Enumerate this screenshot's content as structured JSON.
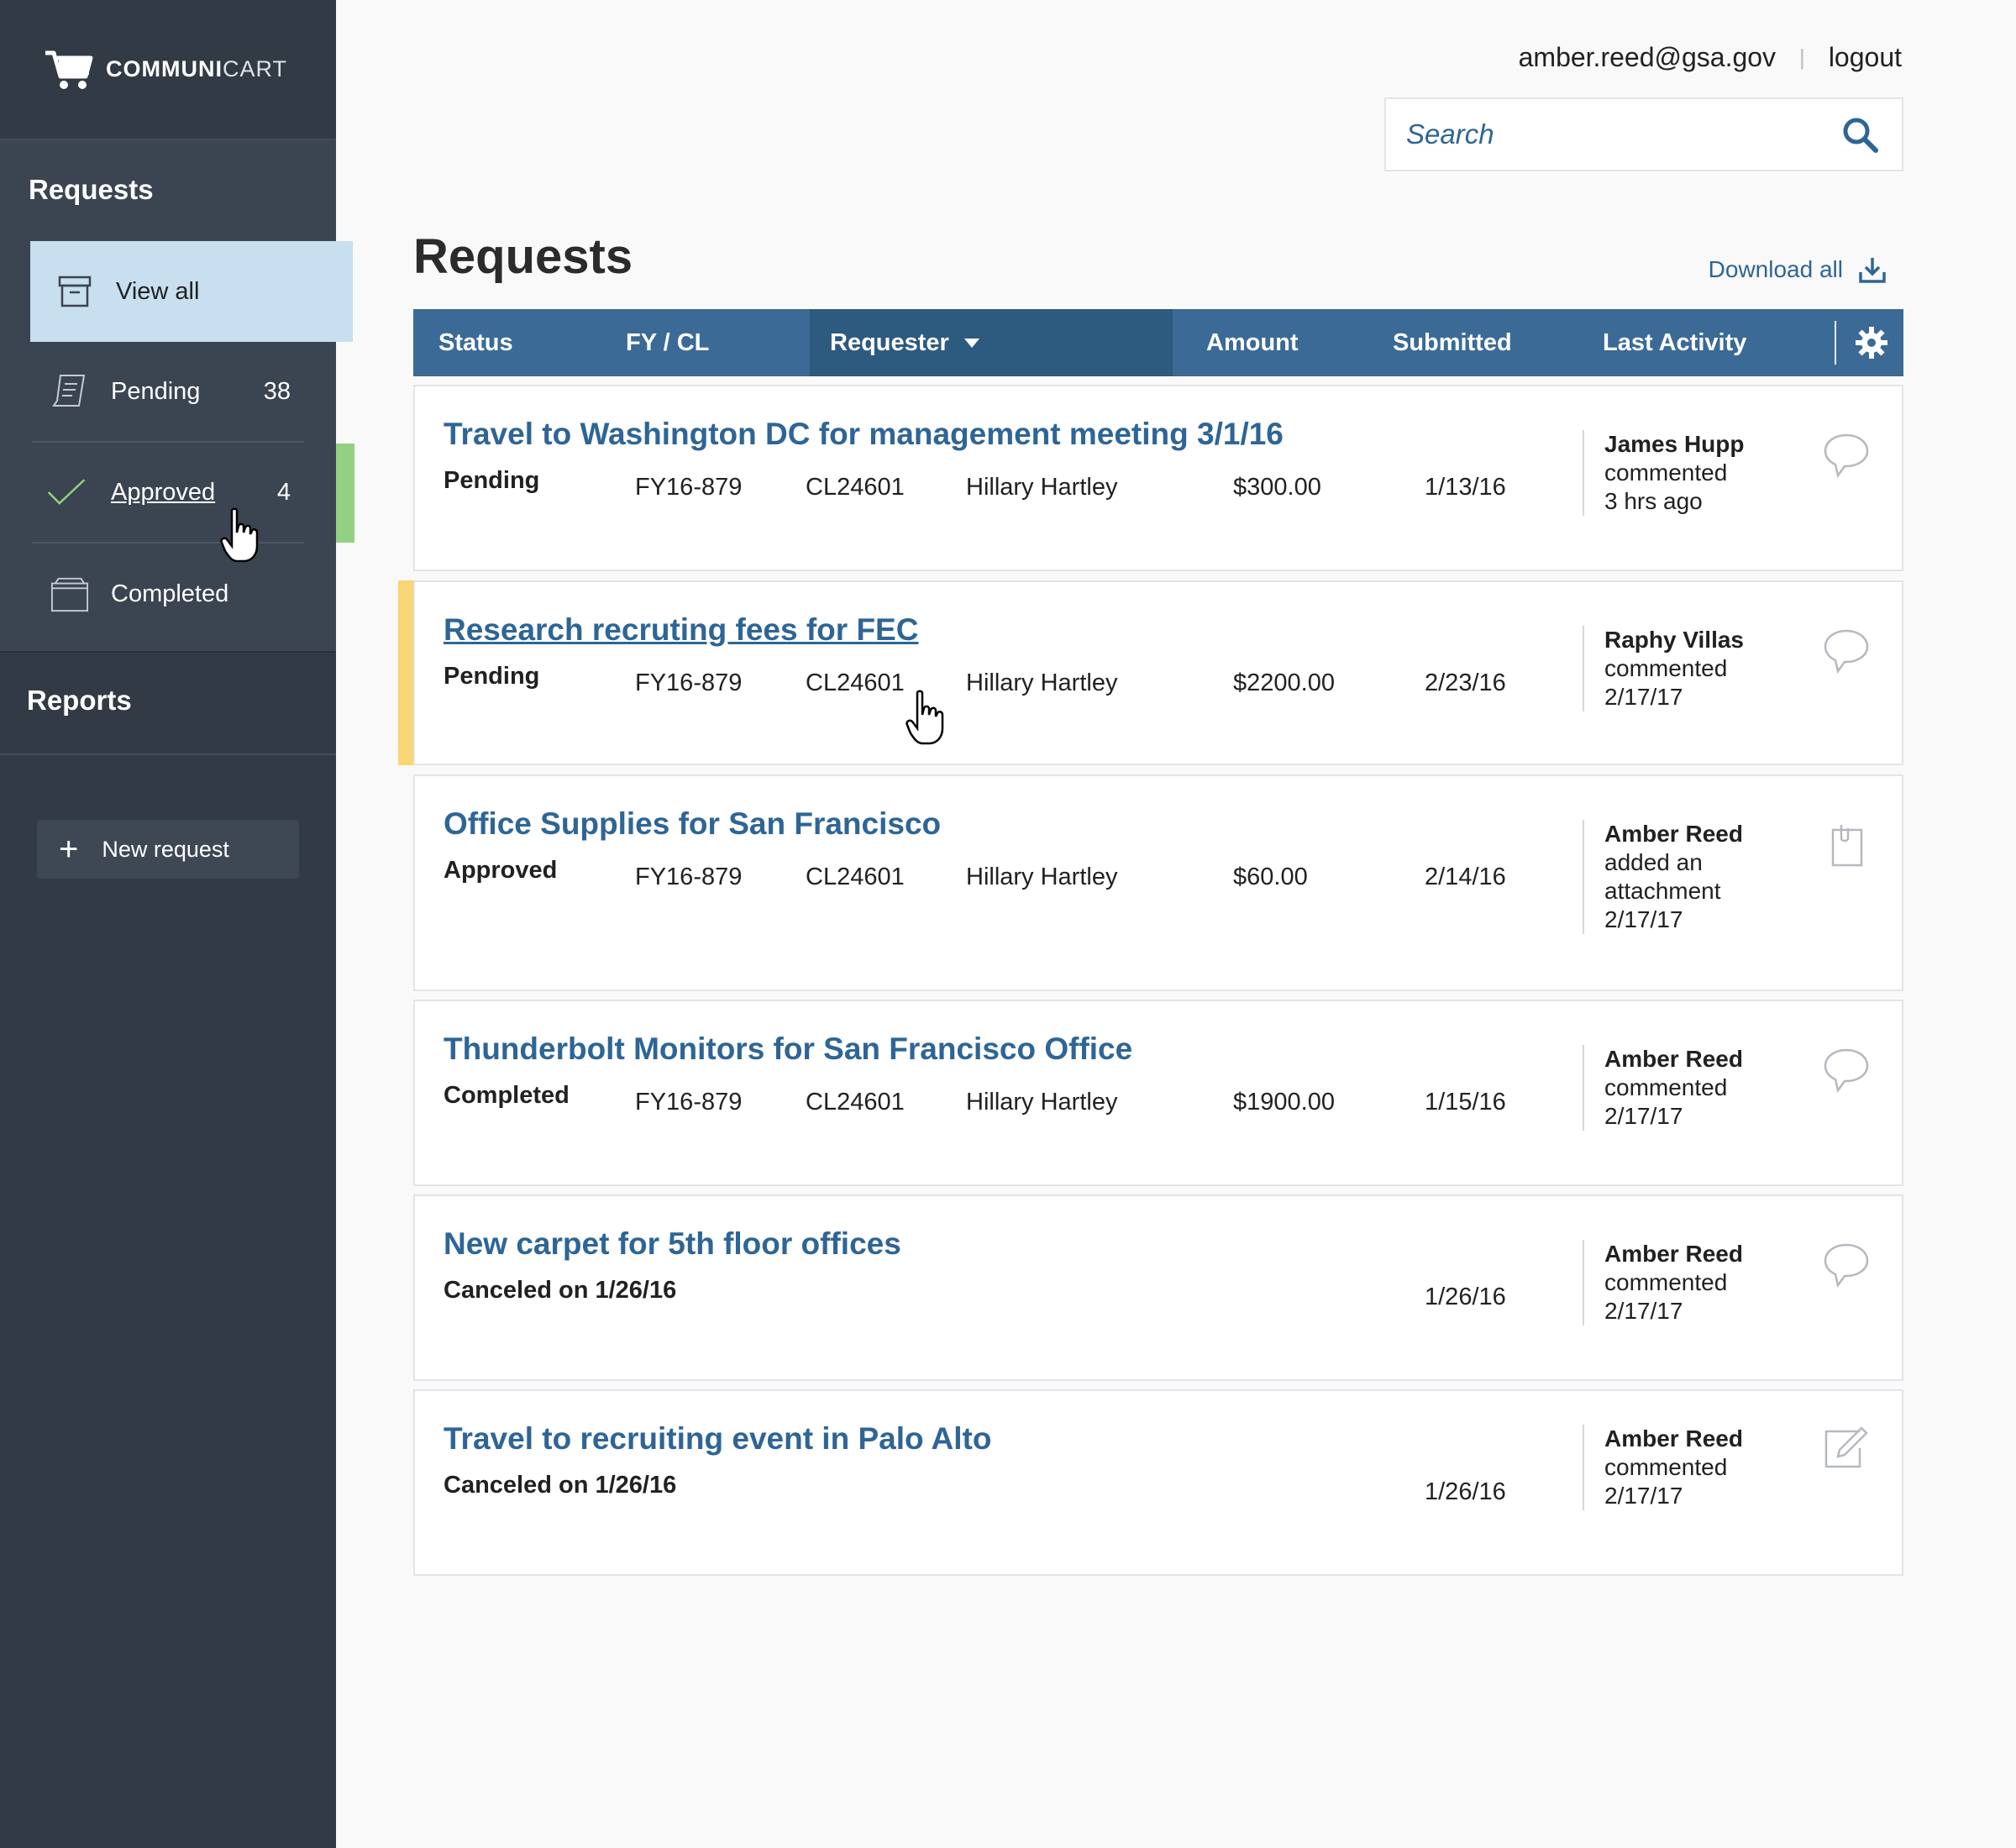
{
  "brand": {
    "name_bold": "COMMUNI",
    "name_light": "CART"
  },
  "user": {
    "email": "amber.reed@gsa.gov",
    "logout_label": "logout"
  },
  "search": {
    "placeholder": "Search"
  },
  "sidebar": {
    "requests_heading": "Requests",
    "items": [
      {
        "label": "View all",
        "count": ""
      },
      {
        "label": "Pending",
        "count": "38"
      },
      {
        "label": "Approved",
        "count": "4"
      },
      {
        "label": "Completed",
        "count": ""
      }
    ],
    "reports_heading": "Reports",
    "new_request_label": "New request"
  },
  "main": {
    "title": "Requests",
    "download_label": "Download all"
  },
  "table": {
    "columns": [
      "Status",
      "FY / CL",
      "Requester",
      "Amount",
      "Submitted",
      "Last Activity"
    ],
    "rows": [
      {
        "title": "Travel to Washington DC for management meeting 3/1/16",
        "status": "Pending",
        "fy": "FY16-879",
        "cl": "CL24601",
        "requester": "Hillary Hartley",
        "amount": "$300.00",
        "submitted": "1/13/16",
        "act_who": "James Hupp",
        "act_what": "commented",
        "act_what2": "",
        "act_when": "3 hrs ago",
        "icon": "comment-icon"
      },
      {
        "title": "Research recruting fees for FEC",
        "status": "Pending",
        "fy": "FY16-879",
        "cl": "CL24601",
        "requester": "Hillary Hartley",
        "amount": "$2200.00",
        "submitted": "2/23/16",
        "act_who": "Raphy Villas",
        "act_what": "commented",
        "act_what2": "",
        "act_when": "2/17/17",
        "icon": "comment-icon"
      },
      {
        "title": "Office Supplies for San Francisco",
        "status": "Approved",
        "fy": "FY16-879",
        "cl": "CL24601",
        "requester": "Hillary Hartley",
        "amount": "$60.00",
        "submitted": "2/14/16",
        "act_who": "Amber Reed",
        "act_what": "added an",
        "act_what2": "attachment",
        "act_when": "2/17/17",
        "icon": "attachment-icon"
      },
      {
        "title": "Thunderbolt Monitors for San Francisco Office",
        "status": "Completed",
        "fy": "FY16-879",
        "cl": "CL24601",
        "requester": "Hillary Hartley",
        "amount": "$1900.00",
        "submitted": "1/15/16",
        "act_who": "Amber Reed",
        "act_what": "commented",
        "act_what2": "",
        "act_when": "2/17/17",
        "icon": "comment-icon"
      },
      {
        "title": "New carpet for 5th floor offices",
        "status": "Canceled on 1/26/16",
        "fy": "",
        "cl": "",
        "requester": "",
        "amount": "",
        "submitted": "1/26/16",
        "act_who": "Amber Reed",
        "act_what": "commented",
        "act_what2": "",
        "act_when": "2/17/17",
        "icon": "comment-icon"
      },
      {
        "title": "Travel to recruiting event in Palo Alto",
        "status": "Canceled on 1/26/16",
        "fy": "",
        "cl": "",
        "requester": "",
        "amount": "",
        "submitted": "1/26/16",
        "act_who": "Amber Reed",
        "act_what": "commented",
        "act_what2": "",
        "act_when": "2/17/17",
        "icon": "edit-icon"
      }
    ]
  },
  "colors": {
    "sidebar": "#323a45",
    "accent": "#3b6a96",
    "link": "#2e6596",
    "approved_flag": "#94d082",
    "pending_flag": "#f7d673",
    "active_nav": "#c7dfee"
  }
}
